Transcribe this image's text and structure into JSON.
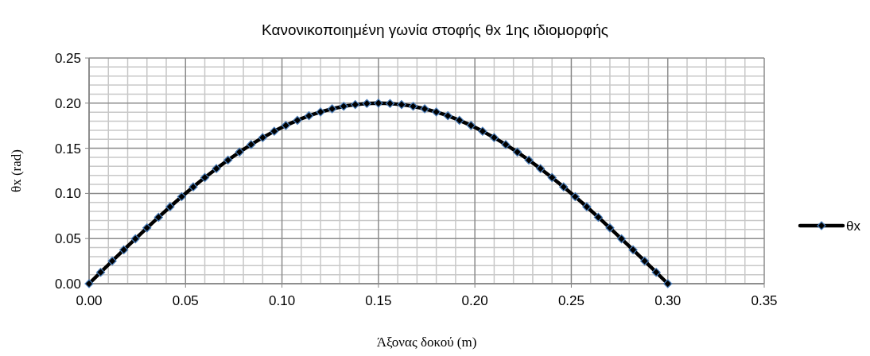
{
  "chart_data": {
    "type": "line",
    "title": "Κανονικοποιημένη γωνία στοφής θx 1ης ιδιομορφής",
    "xlabel": "Άξονας δοκού (m)",
    "ylabel": "θx (rad)",
    "x": [
      0,
      0.006,
      0.012,
      0.018,
      0.024,
      0.03,
      0.036,
      0.042,
      0.048,
      0.054,
      0.06,
      0.066,
      0.072,
      0.078,
      0.084,
      0.09,
      0.096,
      0.102,
      0.108,
      0.114,
      0.12,
      0.126,
      0.132,
      0.138,
      0.144,
      0.15,
      0.156,
      0.162,
      0.168,
      0.174,
      0.18,
      0.186,
      0.192,
      0.198,
      0.204,
      0.21,
      0.216,
      0.222,
      0.228,
      0.234,
      0.24,
      0.246,
      0.252,
      0.258,
      0.264,
      0.27,
      0.276,
      0.282,
      0.288,
      0.294,
      0.3
    ],
    "series": [
      {
        "name": "θx",
        "color": "#000000",
        "values": [
          0,
          0.0126,
          0.0251,
          0.0375,
          0.0497,
          0.0618,
          0.0736,
          0.0852,
          0.0964,
          0.1072,
          0.1176,
          0.1275,
          0.1369,
          0.1458,
          0.1541,
          0.1618,
          0.1689,
          0.1753,
          0.181,
          0.186,
          0.1902,
          0.1937,
          0.1965,
          0.1984,
          0.1996,
          0.2,
          0.1996,
          0.1984,
          0.1965,
          0.1937,
          0.1902,
          0.186,
          0.181,
          0.1753,
          0.1689,
          0.1618,
          0.1541,
          0.1458,
          0.1369,
          0.1275,
          0.1176,
          0.1072,
          0.0964,
          0.0852,
          0.0736,
          0.0618,
          0.0497,
          0.0375,
          0.0251,
          0.0126,
          0
        ]
      }
    ],
    "xlim": [
      0,
      0.35
    ],
    "xticks": [
      {
        "value": 0,
        "label": "0.00"
      },
      {
        "value": 0.05,
        "label": "0.05"
      },
      {
        "value": 0.1,
        "label": "0.10"
      },
      {
        "value": 0.15,
        "label": "0.15"
      },
      {
        "value": 0.2,
        "label": "0.20"
      },
      {
        "value": 0.25,
        "label": "0.25"
      },
      {
        "value": 0.3,
        "label": "0.30"
      },
      {
        "value": 0.35,
        "label": "0.35"
      }
    ],
    "ylim": [
      0,
      0.25
    ],
    "yticks": [
      {
        "value": 0,
        "label": "0.00"
      },
      {
        "value": 0.05,
        "label": "0.05"
      },
      {
        "value": 0.1,
        "label": "0.10"
      },
      {
        "value": 0.15,
        "label": "0.15"
      },
      {
        "value": 0.2,
        "label": "0.20"
      },
      {
        "value": 0.25,
        "label": "0.25"
      }
    ],
    "grid": true,
    "legend": "right",
    "marker": "diamond",
    "line_style": "solid"
  }
}
